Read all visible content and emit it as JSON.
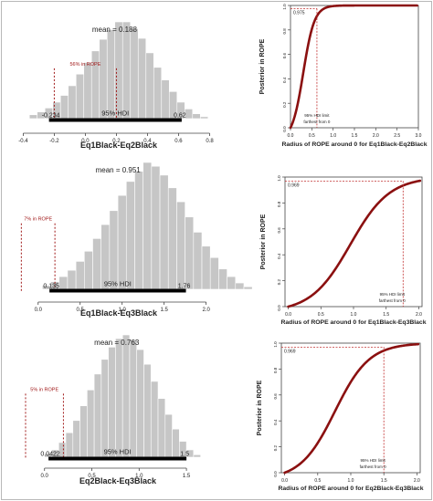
{
  "colors": {
    "bar_fill": "#c6c6c6",
    "bar_stroke": "#ffffff",
    "hdi_line": "#000000",
    "rope_line": "#a01818",
    "curve": "#8b1010",
    "ref_line": "#c23030",
    "axis": "#444444",
    "text": "#222222",
    "border": "#b8b8b8"
  },
  "chart_data": [
    {
      "type": "bar",
      "id": "hist1",
      "xlabel": "Eq1Black-Eq2Black",
      "xticks": [
        "-0.4",
        "-0.2",
        "0.0",
        "0.2",
        "0.4",
        "0.6",
        "0.8"
      ],
      "xlim": [
        -0.42,
        0.85
      ],
      "bin_start": -0.36,
      "bin_width": 0.05,
      "heights": [
        4,
        7,
        11,
        17,
        24,
        34,
        46,
        58,
        70,
        82,
        92,
        100,
        100,
        93,
        83,
        68,
        53,
        40,
        28,
        17,
        10,
        5,
        2
      ],
      "mean_label": "mean = 0.188",
      "mean_x": 0.188,
      "hdi_label": "95% HDI",
      "hdi_low_label": "-0.234",
      "hdi_high_label": "0.62",
      "hdi": [
        -0.234,
        0.62
      ],
      "rope_label": "56% in ROPE",
      "rope": [
        -0.2,
        0.2
      ]
    },
    {
      "type": "line",
      "id": "rope1",
      "ylabel": "Posterior in ROPE",
      "xlabel": "Radius of ROPE around 0 for Eq1Black-Eq2Black",
      "xticks": [
        "0.0",
        "0.5",
        "1.0",
        "1.5",
        "2.0",
        "2.5",
        "3.0"
      ],
      "yticks": [
        "0.0",
        "0.2",
        "0.4",
        "0.6",
        "0.8",
        "1.0"
      ],
      "xlim": [
        0,
        3
      ],
      "ylim": [
        0,
        1
      ],
      "mid": 0.3,
      "spread": 0.13,
      "value_label": "0.975",
      "value_y": 0.975,
      "limit_x": 0.62,
      "note1": "95% HDI limit",
      "note2": "farthest from 0"
    },
    {
      "type": "bar",
      "id": "hist2",
      "xlabel": "Eq1Black-Eq3Black",
      "xticks": [
        "0.0",
        "0.5",
        "1.0",
        "1.5",
        "2.0"
      ],
      "xlim": [
        -0.28,
        2.2
      ],
      "bin_start": 0.05,
      "bin_width": 0.1,
      "heights": [
        3,
        6,
        10,
        15,
        22,
        30,
        40,
        51,
        62,
        74,
        85,
        93,
        100,
        97,
        90,
        80,
        69,
        57,
        45,
        34,
        25,
        16,
        10,
        5,
        2
      ],
      "mean_label": "mean = 0.951",
      "mean_x": 0.951,
      "hdi_label": "95% HDI",
      "hdi_low_label": "0.135",
      "hdi_high_label": "1.76",
      "hdi": [
        0.135,
        1.76
      ],
      "rope_label": "7% in ROPE",
      "rope": [
        -0.2,
        0.2
      ]
    },
    {
      "type": "line",
      "id": "rope2",
      "ylabel": "Posterior in ROPE",
      "xlabel": "Radius of ROPE around 0 for Eq1Black-Eq3Black",
      "xticks": [
        "0.0",
        "0.5",
        "1.0",
        "1.5",
        "2.0"
      ],
      "yticks": [
        "0.0",
        "0.2",
        "0.4",
        "0.6",
        "0.8",
        "1.0"
      ],
      "xlim": [
        -0.05,
        2.05
      ],
      "ylim": [
        0,
        1
      ],
      "mid": 0.95,
      "spread": 0.3,
      "value_label": "0.969",
      "value_y": 0.969,
      "limit_x": 1.76,
      "note1": "95% HDI limit",
      "note2": "farthest from 0"
    },
    {
      "type": "bar",
      "id": "hist3",
      "xlabel": "Eq2Black-Eq3Black",
      "xticks": [
        "0.0",
        "0.5",
        "1.0",
        "1.5"
      ],
      "xlim": [
        -0.2,
        1.75
      ],
      "bin_start": 0.0,
      "bin_width": 0.075,
      "heights": [
        3,
        6,
        12,
        20,
        30,
        42,
        55,
        68,
        80,
        90,
        97,
        100,
        96,
        88,
        76,
        62,
        48,
        35,
        23,
        13,
        6,
        2
      ],
      "mean_label": "mean = 0.763",
      "mean_x": 0.763,
      "hdi_label": "95% HDI",
      "hdi_low_label": "0.0422",
      "hdi_high_label": "1.5",
      "hdi": [
        0.0422,
        1.5
      ],
      "rope_label": "5% in ROPE",
      "rope": [
        -0.2,
        0.2
      ]
    },
    {
      "type": "line",
      "id": "rope3",
      "ylabel": "Posterior in ROPE",
      "xlabel": "Radius of ROPE around 0 for Eq2Black-Eq3Black",
      "xticks": [
        "0.0",
        "0.5",
        "1.0",
        "1.5",
        "2.0"
      ],
      "yticks": [
        "0.0",
        "0.2",
        "0.4",
        "0.6",
        "0.8",
        "1.0"
      ],
      "xlim": [
        -0.05,
        2.05
      ],
      "ylim": [
        0,
        1
      ],
      "mid": 0.76,
      "spread": 0.26,
      "value_label": "0.969",
      "value_y": 0.969,
      "limit_x": 1.5,
      "note1": "95% HDI limit",
      "note2": "farthest from 0"
    }
  ]
}
